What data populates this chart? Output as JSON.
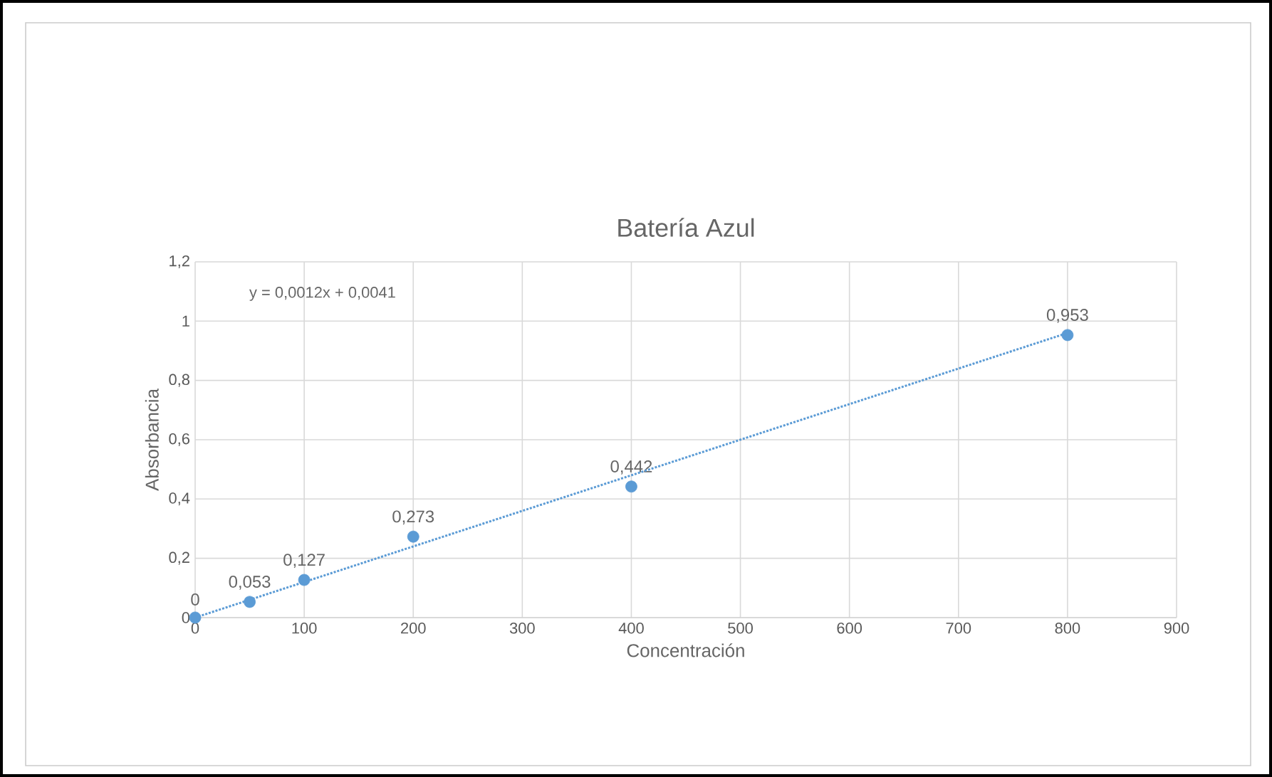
{
  "chart_data": {
    "type": "scatter",
    "title": "Batería Azul",
    "xlabel": "Concentración",
    "ylabel": "Absorbancia",
    "x": [
      0,
      50,
      100,
      200,
      400,
      800
    ],
    "series": [
      {
        "color": "#5b9bd5",
        "marker": "circle",
        "values": [
          0,
          0.053,
          0.127,
          0.273,
          0.442,
          0.953
        ],
        "value_labels": [
          "0",
          "0,053",
          "0,127",
          "0,273",
          "0,442",
          "0,953"
        ]
      },
      {
        "type": "line",
        "color": "#5b9bd5",
        "marker": "none",
        "line_style": "dotted",
        "x": [
          0,
          800
        ],
        "values": [
          0,
          0.96
        ]
      }
    ],
    "annotations": [
      "y = 0,0012x + 0,0041"
    ],
    "xlim": [
      0,
      900
    ],
    "xticks": [
      0,
      100,
      200,
      300,
      400,
      500,
      600,
      700,
      800,
      900
    ],
    "ylim": [
      0,
      1.2
    ],
    "yticks": [
      0,
      {
        "value": 0.2,
        "label": "0,2"
      },
      {
        "value": 0.4,
        "label": "0,4"
      },
      {
        "value": 0.6,
        "label": "0,6"
      },
      {
        "value": 0.8,
        "label": "0,8"
      },
      1,
      {
        "value": 1.2,
        "label": "1,2"
      }
    ],
    "grid": true
  }
}
